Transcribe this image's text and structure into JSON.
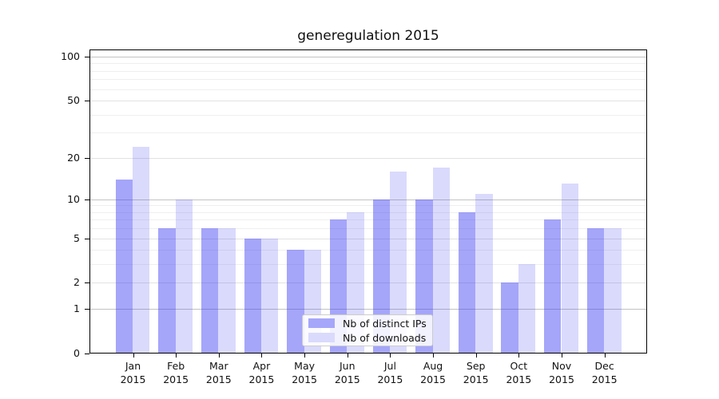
{
  "chart_data": {
    "type": "bar",
    "title": "generegulation 2015",
    "xlabel": "",
    "ylabel": "",
    "year_label": "2015",
    "categories": [
      "Jan",
      "Feb",
      "Mar",
      "Apr",
      "May",
      "Jun",
      "Jul",
      "Aug",
      "Sep",
      "Oct",
      "Nov",
      "Dec"
    ],
    "series": [
      {
        "name": "Nb of distinct IPs",
        "values": [
          14,
          6,
          6,
          5,
          4,
          7,
          10,
          10,
          8,
          2,
          7,
          6
        ],
        "fill_rgba": "rgba(56,56,245,0.45)",
        "swatch_hex": "#a6a6fa"
      },
      {
        "name": "Nb of downloads",
        "values": [
          24,
          10,
          6,
          5,
          4,
          8,
          16,
          17,
          11,
          3,
          13,
          6
        ],
        "fill_rgba": "rgba(56,56,245,0.185)",
        "swatch_hex": "#dadafd"
      }
    ],
    "y_scale": "log10(1+value)",
    "ylim": [
      0,
      112
    ],
    "y_tick_labels": [
      "0",
      "1",
      "2",
      "5",
      "10",
      "20",
      "50",
      "100"
    ],
    "y_tick_values": [
      0,
      1,
      2,
      5,
      10,
      20,
      50,
      100
    ],
    "y_decade_values": [
      1,
      10,
      100
    ],
    "y_minor_grid_values": [
      3,
      4,
      6,
      7,
      8,
      9,
      30,
      40,
      60,
      70,
      80,
      90
    ],
    "grid": true,
    "legend_position": "lower-center",
    "colors": {
      "grid_decade": "#c3c3c3",
      "grid_labeled": "#e2e2e2",
      "grid_minor": "#efefef",
      "axis": "#000000",
      "text": "#111111",
      "legend_border": "#cccccc"
    }
  }
}
